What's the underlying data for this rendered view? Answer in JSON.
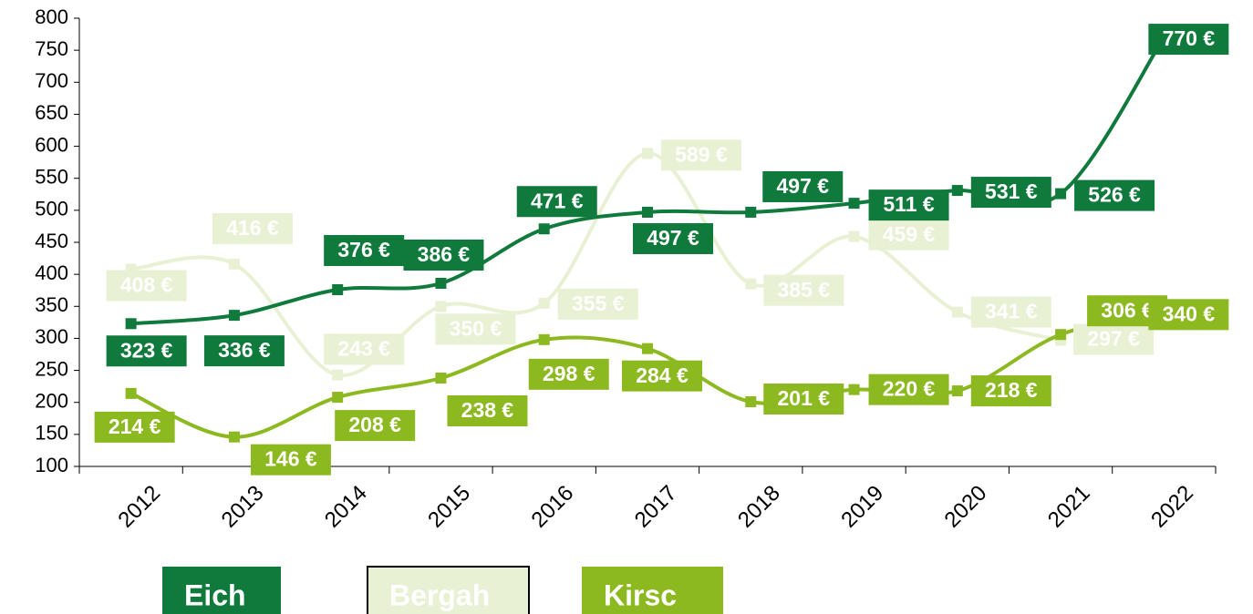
{
  "chart_data": {
    "type": "line",
    "categories": [
      "2012",
      "2013",
      "2014",
      "2015",
      "2016",
      "2017",
      "2018",
      "2019",
      "2020",
      "2021",
      "2022"
    ],
    "series": [
      {
        "name": "Eich",
        "color": "#0f7a3c",
        "values": [
          323,
          336,
          376,
          386,
          471,
          497,
          497,
          511,
          531,
          526,
          770
        ],
        "value_labels": [
          "323 €",
          "336 €",
          "376 €",
          "386 €",
          "471 €",
          "497 €",
          "497 €",
          "511 €",
          "531 €",
          "526 €",
          "770 €"
        ]
      },
      {
        "name": "Bergah",
        "color": "#e8f1d4",
        "values": [
          408,
          416,
          243,
          350,
          355,
          589,
          385,
          459,
          341,
          297,
          null
        ],
        "value_labels": [
          "408 €",
          "416 €",
          "243 €",
          "350 €",
          "355 €",
          "589 €",
          "385 €",
          "459 €",
          "341 €",
          "297 €",
          null
        ]
      },
      {
        "name": "Kirsc",
        "color": "#8cb91f",
        "values": [
          214,
          146,
          208,
          238,
          298,
          284,
          201,
          220,
          218,
          306,
          340
        ],
        "value_labels": [
          "214 €",
          "146 €",
          "208 €",
          "238 €",
          "298 €",
          "284 €",
          "201 €",
          "220 €",
          "218 €",
          "306 €",
          "340 €"
        ]
      }
    ],
    "ylim": [
      100,
      800
    ],
    "yticks": [
      100,
      150,
      200,
      250,
      300,
      350,
      400,
      450,
      500,
      550,
      600,
      650,
      700,
      750,
      800
    ]
  }
}
